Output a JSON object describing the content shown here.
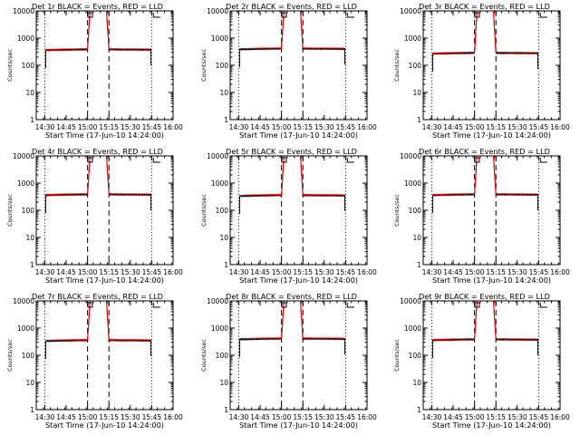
{
  "figure": {
    "xlabel": "Start Time (17-Jun-10 14:24:00)",
    "ylabel": "Counts/sec",
    "title_suffix": " BLACK = Events, RED = LLD",
    "legend_symbols": [
      "□",
      "□",
      "└┘"
    ],
    "colors": {
      "events": "#000000",
      "lld": "#ff0000",
      "frame": "#000000"
    }
  },
  "chart_data": [
    {
      "type": "line",
      "title": "Det 1r",
      "xlim": [
        14.4,
        16.0
      ],
      "ylim": [
        1,
        10000
      ],
      "yscale": "log",
      "series": [
        {
          "name": "Events"
        },
        {
          "name": "LLD"
        }
      ],
      "x_ticks": [
        "14:30",
        "14:45",
        "15:00",
        "15:15",
        "15:30",
        "15:45",
        "16:00"
      ],
      "y_ticks": [
        "1",
        "10",
        "100",
        "1000",
        "10000"
      ],
      "dotted_vlines": [
        14.5,
        15.75
      ],
      "dashed_vlines": [
        15.0,
        15.25
      ]
    },
    {
      "type": "line",
      "title": "Det 2r",
      "xlim": [
        14.4,
        16.0
      ],
      "ylim": [
        1,
        10000
      ],
      "yscale": "log",
      "series": [
        {
          "name": "Events"
        },
        {
          "name": "LLD"
        }
      ],
      "x_ticks": [
        "14:30",
        "14:45",
        "15:00",
        "15:15",
        "15:30",
        "15:45",
        "16:00"
      ],
      "y_ticks": [
        "1",
        "10",
        "100",
        "1000",
        "10000"
      ],
      "dotted_vlines": [
        14.5,
        15.75
      ],
      "dashed_vlines": [
        15.0,
        15.25
      ]
    },
    {
      "type": "line",
      "title": "Det 3r",
      "xlim": [
        14.4,
        16.0
      ],
      "ylim": [
        1,
        10000
      ],
      "yscale": "log",
      "series": [
        {
          "name": "Events"
        },
        {
          "name": "LLD"
        }
      ],
      "x_ticks": [
        "14:30",
        "14:45",
        "15:00",
        "15:15",
        "15:30",
        "15:45",
        "16:00"
      ],
      "y_ticks": [
        "1",
        "10",
        "100",
        "1000",
        "10000"
      ],
      "dotted_vlines": [
        14.5,
        15.75
      ],
      "dashed_vlines": [
        15.0,
        15.25
      ]
    },
    {
      "type": "line",
      "title": "Det 4r",
      "xlim": [
        14.4,
        16.0
      ],
      "ylim": [
        1,
        10000
      ],
      "yscale": "log",
      "series": [
        {
          "name": "Events"
        },
        {
          "name": "LLD"
        }
      ],
      "x_ticks": [
        "14:30",
        "14:45",
        "15:00",
        "15:15",
        "15:30",
        "15:45",
        "16:00"
      ],
      "y_ticks": [
        "1",
        "10",
        "100",
        "1000",
        "10000"
      ],
      "dotted_vlines": [
        14.5,
        15.75
      ],
      "dashed_vlines": [
        15.0,
        15.25
      ]
    },
    {
      "type": "line",
      "title": "Det 5r",
      "xlim": [
        14.4,
        16.0
      ],
      "ylim": [
        1,
        10000
      ],
      "yscale": "log",
      "series": [
        {
          "name": "Events"
        },
        {
          "name": "LLD"
        }
      ],
      "x_ticks": [
        "14:30",
        "14:45",
        "15:00",
        "15:15",
        "15:30",
        "15:45",
        "16:00"
      ],
      "y_ticks": [
        "1",
        "10",
        "100",
        "1000",
        "10000"
      ],
      "dotted_vlines": [
        14.5,
        15.75
      ],
      "dashed_vlines": [
        15.0,
        15.25
      ]
    },
    {
      "type": "line",
      "title": "Det 6r",
      "xlim": [
        14.4,
        16.0
      ],
      "ylim": [
        1,
        10000
      ],
      "yscale": "log",
      "series": [
        {
          "name": "Events"
        },
        {
          "name": "LLD"
        }
      ],
      "x_ticks": [
        "14:30",
        "14:45",
        "15:00",
        "15:15",
        "15:30",
        "15:45",
        "16:00"
      ],
      "y_ticks": [
        "1",
        "10",
        "100",
        "1000",
        "10000"
      ],
      "dotted_vlines": [
        14.5,
        15.75
      ],
      "dashed_vlines": [
        15.0,
        15.25
      ]
    },
    {
      "type": "line",
      "title": "Det 7r",
      "xlim": [
        14.4,
        16.0
      ],
      "ylim": [
        1,
        10000
      ],
      "yscale": "log",
      "series": [
        {
          "name": "Events"
        },
        {
          "name": "LLD"
        }
      ],
      "x_ticks": [
        "14:30",
        "14:45",
        "15:00",
        "15:15",
        "15:30",
        "15:45",
        "16:00"
      ],
      "y_ticks": [
        "1",
        "10",
        "100",
        "1000",
        "10000"
      ],
      "dotted_vlines": [
        14.5,
        15.75
      ],
      "dashed_vlines": [
        15.0,
        15.25
      ]
    },
    {
      "type": "line",
      "title": "Det 8r",
      "xlim": [
        14.4,
        16.0
      ],
      "ylim": [
        1,
        10000
      ],
      "yscale": "log",
      "series": [
        {
          "name": "Events"
        },
        {
          "name": "LLD"
        }
      ],
      "x_ticks": [
        "14:30",
        "14:45",
        "15:00",
        "15:15",
        "15:30",
        "15:45",
        "16:00"
      ],
      "y_ticks": [
        "1",
        "10",
        "100",
        "1000",
        "10000"
      ],
      "dotted_vlines": [
        14.5,
        15.75
      ],
      "dashed_vlines": [
        15.0,
        15.25
      ]
    },
    {
      "type": "line",
      "title": "Det 9r",
      "xlim": [
        14.4,
        16.0
      ],
      "ylim": [
        1,
        10000
      ],
      "yscale": "log",
      "series": [
        {
          "name": "Events"
        },
        {
          "name": "LLD"
        }
      ],
      "x_ticks": [
        "14:30",
        "14:45",
        "15:00",
        "15:15",
        "15:30",
        "15:45",
        "16:00"
      ],
      "y_ticks": [
        "1",
        "10",
        "100",
        "1000",
        "10000"
      ],
      "dotted_vlines": [
        14.5,
        15.75
      ],
      "dashed_vlines": [
        15.0,
        15.25
      ]
    }
  ]
}
